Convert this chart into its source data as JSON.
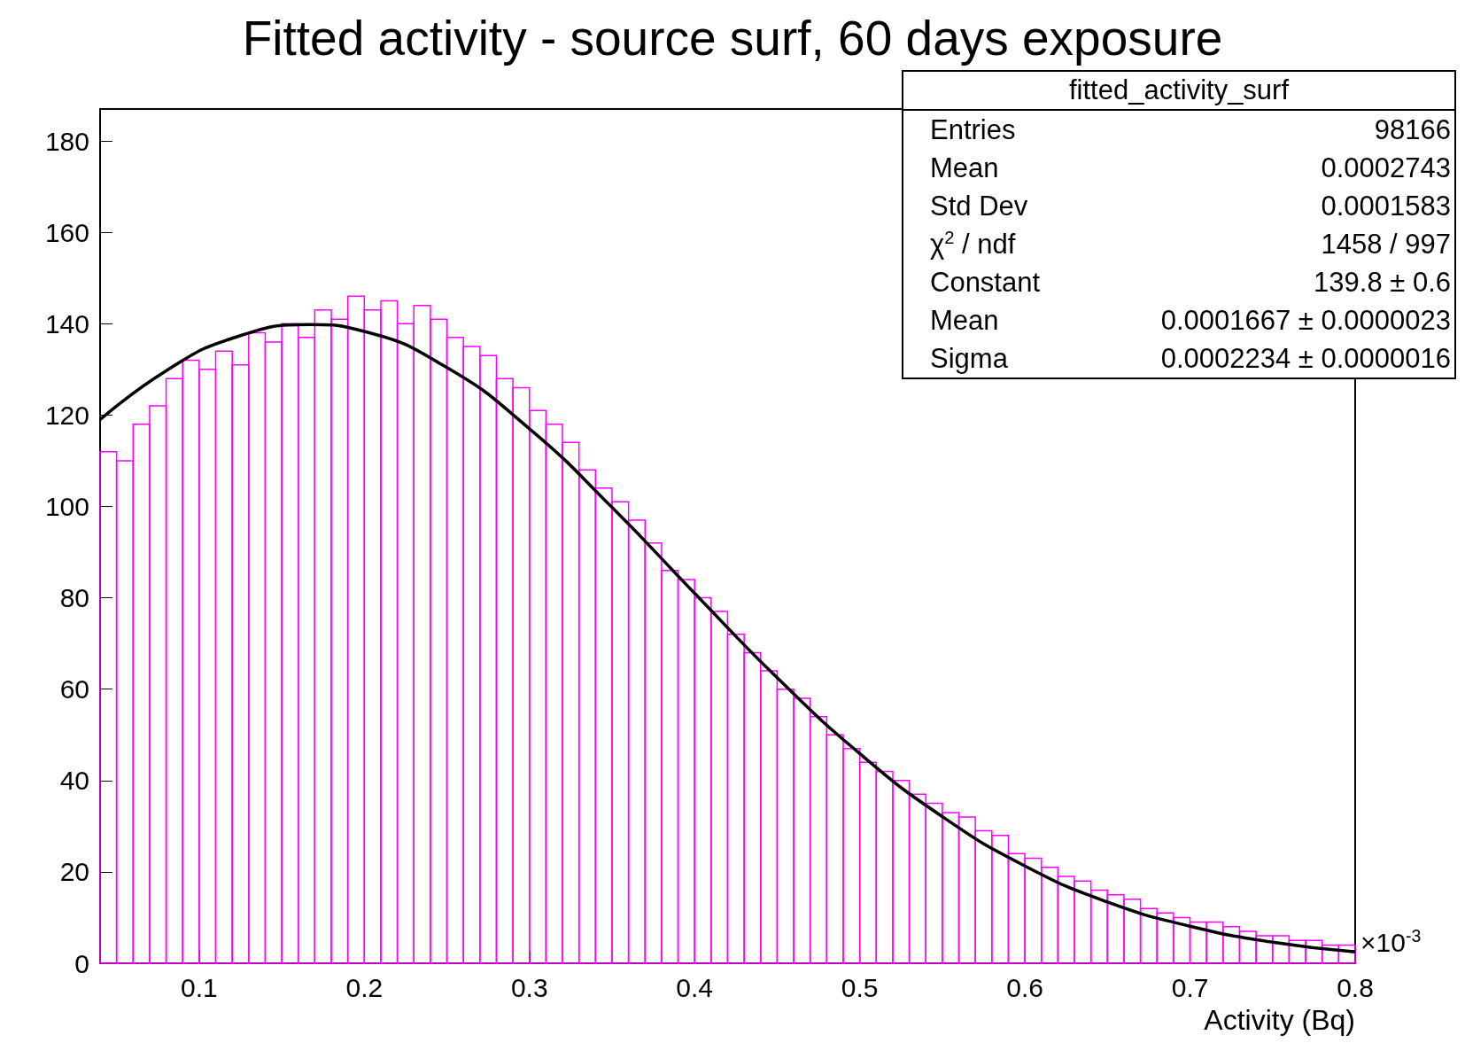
{
  "chart_data": {
    "type": "histogram",
    "title": "Fitted activity - source surf, 60 days exposure",
    "xlabel": "Activity (Bq)",
    "annotations": [
      "fitted_activity_surf",
      "Entries",
      "98166",
      "Mean",
      "0.0002743",
      "Std Dev",
      "0.0001583",
      "χ$^{2}$ / ndf",
      "1458 / 997",
      "Constant",
      "139.8 ± 0.6",
      "Mean",
      "0.0001667 ± 0.0000023",
      "Sigma",
      "0.0002234 ± 0.0000016",
      "×10$^{-3}$"
    ],
    "bins": [
      0.04,
      0.05,
      0.06,
      0.07,
      0.08,
      0.09,
      0.1,
      0.11,
      0.12,
      0.13,
      0.14,
      0.15,
      0.16,
      0.17,
      0.18,
      0.19,
      0.2,
      0.21,
      0.22,
      0.23,
      0.24,
      0.25,
      0.26,
      0.27,
      0.28,
      0.29,
      0.3,
      0.31,
      0.32,
      0.33,
      0.34,
      0.35,
      0.36,
      0.37,
      0.38,
      0.39,
      0.4,
      0.41,
      0.42,
      0.43,
      0.44,
      0.45,
      0.46,
      0.47,
      0.48,
      0.49,
      0.5,
      0.51,
      0.52,
      0.53,
      0.54,
      0.55,
      0.56,
      0.57,
      0.58,
      0.59,
      0.6,
      0.61,
      0.62,
      0.63,
      0.64,
      0.65,
      0.66,
      0.67,
      0.68,
      0.69,
      0.7,
      0.71,
      0.72,
      0.73,
      0.74,
      0.75,
      0.76,
      0.77,
      0.78,
      0.79,
      0.8
    ],
    "series": [
      {
        "type": "histogram",
        "color": "#ff00ff",
        "values": [
          112,
          110,
          118,
          122,
          128,
          132,
          130,
          134,
          131,
          138,
          136,
          140,
          137,
          143,
          141,
          146,
          143,
          145,
          140,
          144,
          141,
          137,
          135,
          133,
          128,
          126,
          121,
          118,
          114,
          108,
          104,
          101,
          97,
          92,
          86,
          84,
          80,
          77,
          72,
          68,
          64,
          60,
          58,
          54,
          50,
          47,
          44,
          42,
          40,
          37,
          35,
          33,
          32,
          29,
          28,
          24,
          23,
          21,
          19,
          18,
          16,
          15,
          14,
          12,
          11,
          10,
          9,
          9,
          8,
          7,
          6,
          6,
          5,
          5,
          4,
          4
        ]
      },
      {
        "type": "line",
        "color": "#000000",
        "x": [
          0.04,
          0.08,
          0.12,
          0.1667,
          0.2,
          0.25,
          0.3,
          0.35,
          0.4,
          0.45,
          0.5,
          0.55,
          0.6,
          0.65,
          0.7,
          0.75,
          0.8
        ],
        "values": [
          119.0,
          129.7,
          136.8,
          139.8,
          138.3,
          130.4,
          117.0,
          99.8,
          81.0,
          62.5,
          45.9,
          32.1,
          21.3,
          13.4,
          8.1,
          4.6,
          2.5
        ]
      }
    ],
    "xlim": [
      0.04,
      0.8
    ],
    "xticks": [
      0.1,
      0.2,
      0.3,
      0.4,
      0.5,
      0.6,
      0.7,
      0.8
    ],
    "ylim": [
      0,
      187
    ],
    "yticks": [
      0,
      20,
      40,
      60,
      80,
      100,
      120,
      140,
      160,
      180
    ]
  }
}
